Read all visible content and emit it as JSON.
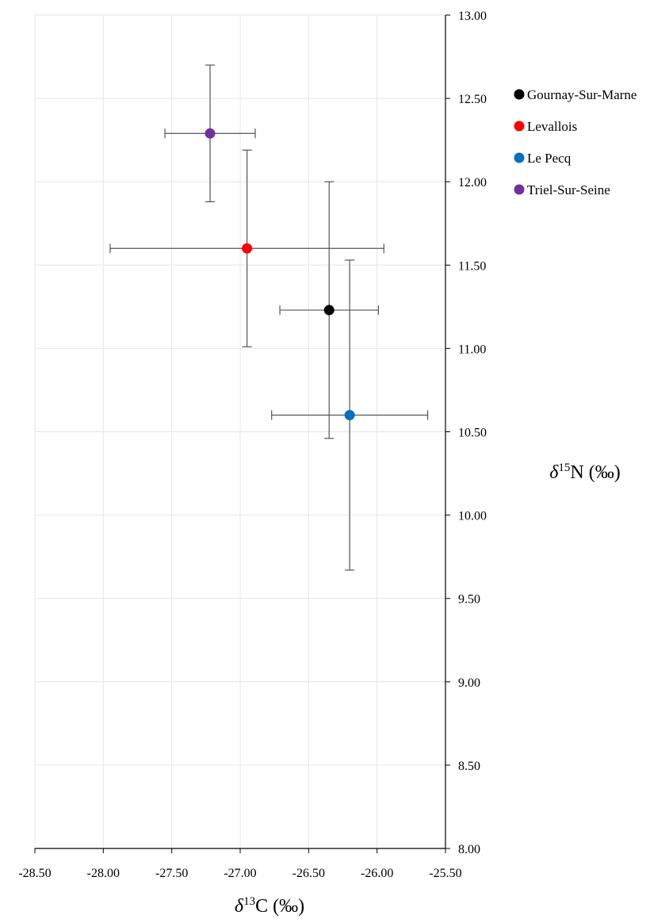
{
  "chart_data": {
    "type": "scatter",
    "title": "",
    "xlabel": {
      "italic": "δ",
      "sup": "13",
      "rest": "C (‰)"
    },
    "ylabel": {
      "italic": "δ",
      "sup": "15",
      "rest": "N (‰)"
    },
    "xlim": [
      -28.5,
      -25.5
    ],
    "ylim": [
      8.0,
      13.0
    ],
    "xticks": [
      "-28.50",
      "-28.00",
      "-27.50",
      "-27.00",
      "-26.50",
      "-26.00",
      "-25.50"
    ],
    "yticks": [
      "8.00",
      "8.50",
      "9.00",
      "9.50",
      "10.00",
      "10.50",
      "11.00",
      "11.50",
      "12.00",
      "12.50",
      "13.00"
    ],
    "grid": true,
    "y_axis_position": "right",
    "legend_position": "top-right",
    "series": [
      {
        "name": "Gournay-Sur-Marne",
        "color": "#000000",
        "x": -26.35,
        "y": 11.23,
        "x_err": 0.36,
        "y_err": 0.77
      },
      {
        "name": "Levallois",
        "color": "#ff0000",
        "x": -26.95,
        "y": 11.6,
        "x_err": 1.0,
        "y_err": 0.59
      },
      {
        "name": "Le Pecq",
        "color": "#0070c0",
        "x": -26.2,
        "y": 10.6,
        "x_err": 0.57,
        "y_err": 0.93
      },
      {
        "name": "Triel-Sur-Seine",
        "color": "#7030a0",
        "x": -27.22,
        "y": 12.29,
        "x_err": 0.33,
        "y_err": 0.41
      }
    ]
  }
}
